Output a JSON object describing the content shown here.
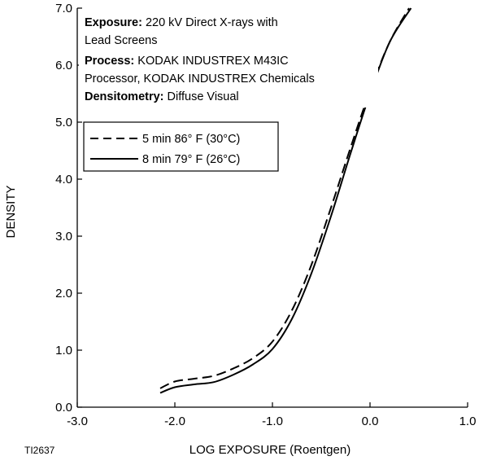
{
  "chart_data": {
    "type": "line",
    "xlabel": "LOG EXPOSURE (Roentgen)",
    "ylabel": "DENSITY",
    "xlim": [
      -3.0,
      1.0
    ],
    "ylim": [
      0.0,
      7.0
    ],
    "x_ticks": [
      "-3.0",
      "-2.0",
      "-1.0",
      "0.0",
      "1.0"
    ],
    "y_ticks": [
      "0.0",
      "1.0",
      "2.0",
      "3.0",
      "4.0",
      "5.0",
      "6.0",
      "7.0"
    ],
    "grid": false,
    "figure_code": "TI2637",
    "notes": [
      {
        "bold": "Exposure:",
        "text": " 220 kV Direct X-rays with"
      },
      {
        "bold": "",
        "text": "Lead Screens"
      },
      {
        "bold": "Process:",
        "text": " KODAK INDUSTREX M43IC"
      },
      {
        "bold": "",
        "text": "Processor, KODAK INDUSTREX Chemicals"
      },
      {
        "bold": "Densitometry:",
        "text": " Diffuse Visual"
      }
    ],
    "legend_position": "upper-left",
    "series": [
      {
        "name": "5 min 86° F (30°C)",
        "style": "dashed",
        "x": [
          -2.15,
          -2.0,
          -1.8,
          -1.6,
          -1.4,
          -1.2,
          -1.0,
          -0.8,
          -0.6,
          -0.4,
          -0.2,
          0.0,
          0.2,
          0.4
        ],
        "y": [
          0.33,
          0.45,
          0.5,
          0.55,
          0.68,
          0.86,
          1.15,
          1.7,
          2.5,
          3.5,
          4.55,
          5.55,
          6.4,
          7.0
        ]
      },
      {
        "name": "8 min 79° F (26°C)",
        "style": "solid",
        "x": [
          -2.15,
          -2.0,
          -1.8,
          -1.6,
          -1.4,
          -1.2,
          -1.0,
          -0.8,
          -0.6,
          -0.4,
          -0.2,
          0.0,
          0.2,
          0.42
        ],
        "y": [
          0.25,
          0.35,
          0.4,
          0.44,
          0.57,
          0.75,
          1.02,
          1.55,
          2.35,
          3.35,
          4.45,
          5.5,
          6.4,
          7.0
        ]
      }
    ]
  }
}
